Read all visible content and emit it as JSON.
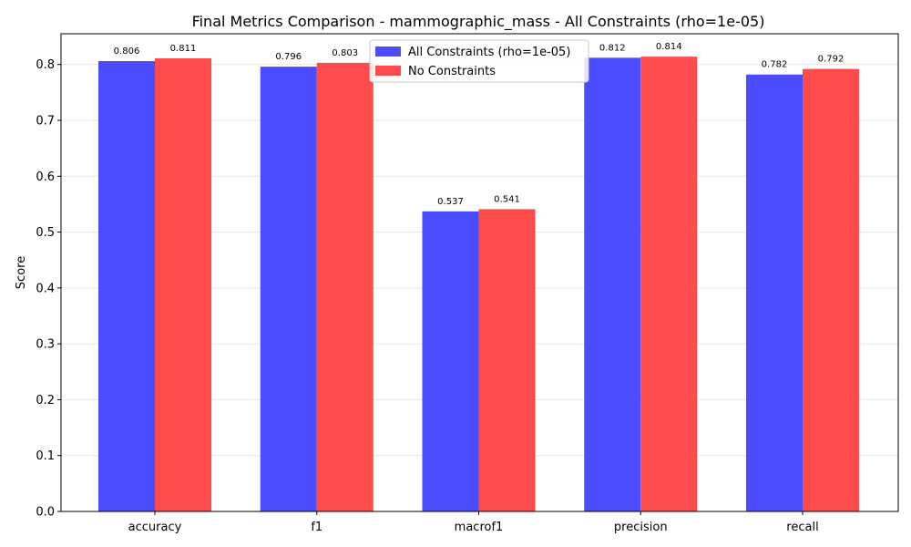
{
  "chart_data": {
    "type": "bar",
    "title": "Final Metrics Comparison - mammographic_mass - All Constraints (rho=1e-05)",
    "xlabel": "",
    "ylabel": "Score",
    "categories": [
      "accuracy",
      "f1",
      "macrof1",
      "precision",
      "recall"
    ],
    "ylim": [
      0,
      0.855
    ],
    "yticks": [
      0.0,
      0.1,
      0.2,
      0.3,
      0.4,
      0.5,
      0.6,
      0.7,
      0.8
    ],
    "ytick_labels": [
      "0.0",
      "0.1",
      "0.2",
      "0.3",
      "0.4",
      "0.5",
      "0.6",
      "0.7",
      "0.8"
    ],
    "grid": "horizontal",
    "legend_position": "top-center",
    "series": [
      {
        "name": "All Constraints (rho=1e-05)",
        "color": "#4b4bff",
        "values": [
          0.806,
          0.796,
          0.537,
          0.812,
          0.782
        ],
        "value_labels": [
          "0.806",
          "0.796",
          "0.537",
          "0.812",
          "0.782"
        ]
      },
      {
        "name": "No Constraints",
        "color": "#ff4b4b",
        "values": [
          0.811,
          0.803,
          0.541,
          0.814,
          0.792
        ],
        "value_labels": [
          "0.811",
          "0.803",
          "0.541",
          "0.814",
          "0.792"
        ]
      }
    ]
  }
}
